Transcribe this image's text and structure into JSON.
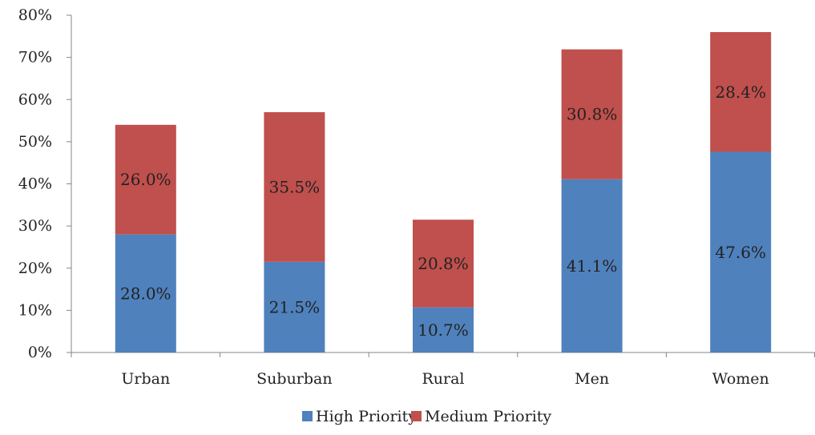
{
  "chart_data": {
    "type": "bar",
    "stacked": true,
    "categories": [
      "Urban",
      "Suburban",
      "Rural",
      "Men",
      "Women"
    ],
    "series": [
      {
        "name": "High Priority",
        "color": "#4f81bd",
        "values": [
          28.0,
          21.5,
          10.7,
          41.1,
          47.6
        ],
        "labels": [
          "28.0%",
          "21.5%",
          "10.7%",
          "41.1%",
          "47.6%"
        ]
      },
      {
        "name": "Medium Priority",
        "color": "#c0504d",
        "values": [
          26.0,
          35.5,
          20.8,
          30.8,
          28.4
        ],
        "labels": [
          "26.0%",
          "35.5%",
          "20.8%",
          "30.8%",
          "28.4%"
        ]
      }
    ],
    "ylim": [
      0,
      80
    ],
    "y_ticks": [
      "0%",
      "10%",
      "20%",
      "30%",
      "40%",
      "50%",
      "60%",
      "70%",
      "80%"
    ],
    "title": "",
    "xlabel": "",
    "ylabel": "",
    "grid": false,
    "legend_position": "bottom"
  }
}
